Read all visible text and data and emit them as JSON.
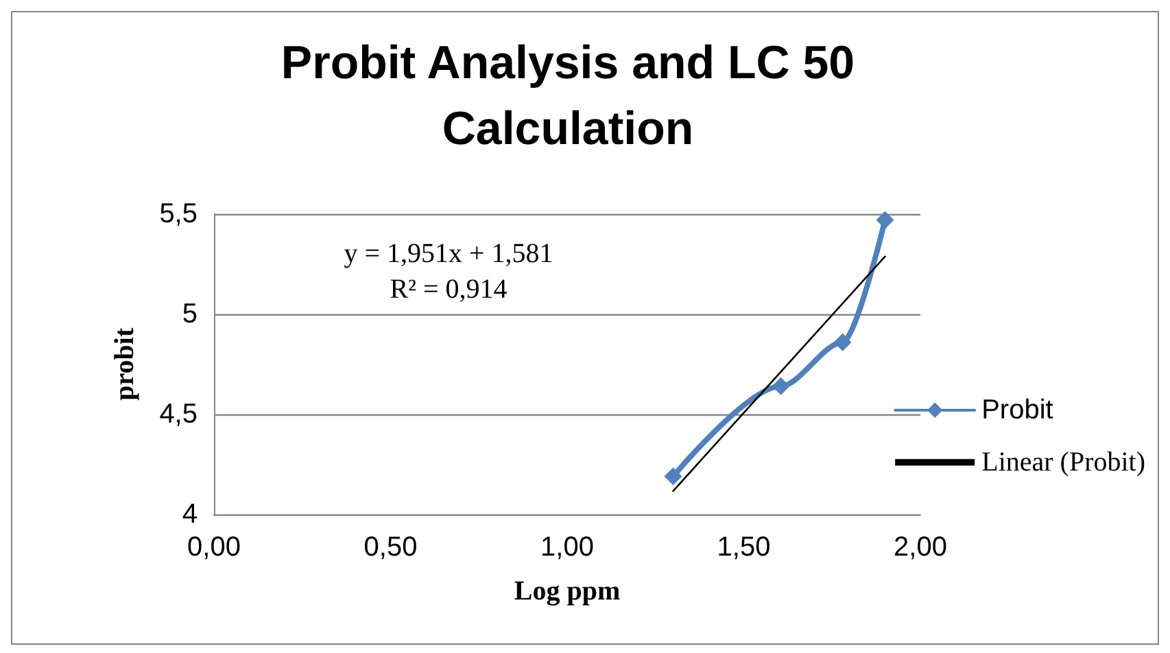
{
  "chart_data": {
    "type": "line",
    "title": "Probit Analysis and LC 50\nCalculation",
    "xlabel": "Log ppm",
    "ylabel": "probit",
    "x": [
      1.3,
      1.605,
      1.78,
      1.9
    ],
    "series": [
      {
        "name": "Probit",
        "color": "#4f81bd",
        "values": [
          4.19,
          4.64,
          4.86,
          5.47
        ]
      },
      {
        "name": "Linear (Probit)",
        "color": "#000000",
        "type": "line",
        "marker": "none",
        "x": [
          1.3,
          1.9
        ],
        "values": [
          4.117,
          5.288
        ]
      }
    ],
    "annotations": [
      "y = 1,951x + 1,581",
      "R² = 0,914"
    ],
    "xlim": [
      0,
      2
    ],
    "xticks": [
      {
        "value": 0,
        "label": "0,00"
      },
      {
        "value": 0.5,
        "label": "0,50"
      },
      {
        "value": 1,
        "label": "1,00"
      },
      {
        "value": 1.5,
        "label": "1,50"
      },
      {
        "value": 2,
        "label": "2,00"
      }
    ],
    "ylim": [
      4,
      5.5
    ],
    "yticks": [
      4,
      {
        "value": 4.5,
        "label": "4,5"
      },
      5,
      {
        "value": 5.5,
        "label": "5,5"
      }
    ],
    "grid": "y",
    "legend": "right",
    "marker": "diamond",
    "line_style": "solid"
  }
}
